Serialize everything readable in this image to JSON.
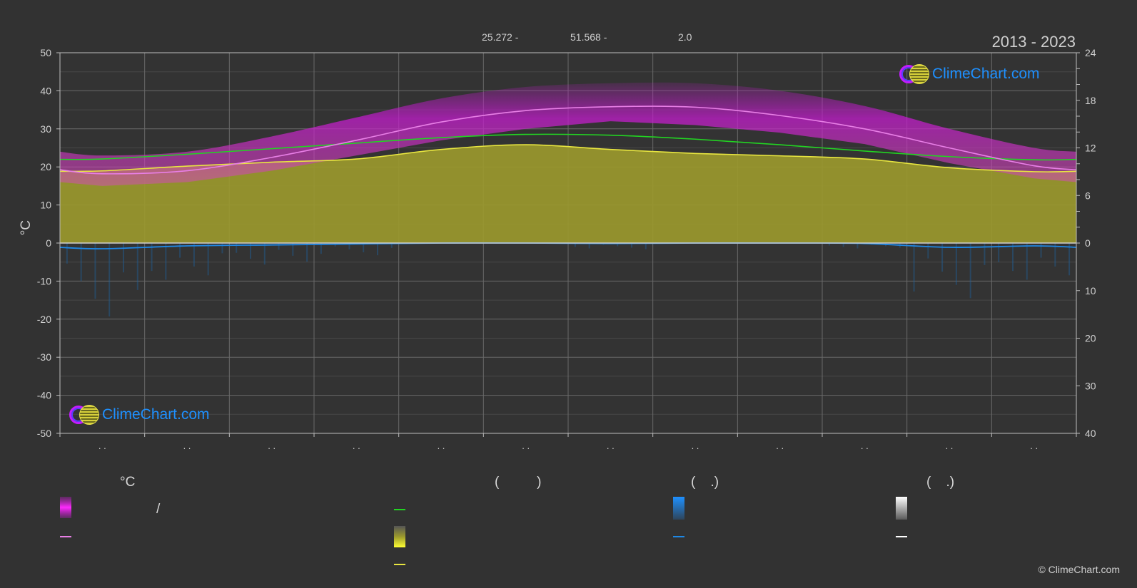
{
  "header": {
    "coord_lat": "25.272 -",
    "coord_lon": "51.568 -",
    "elevation": "2.0",
    "years": "2013 - 2023"
  },
  "brand": {
    "name": "ClimeChart.com",
    "copyright": "© ClimeChart.com"
  },
  "axes": {
    "left_label": "°C",
    "left_ticks": [
      50,
      40,
      30,
      20,
      10,
      0,
      -10,
      -20,
      -30,
      -40,
      -50
    ],
    "right_ticks_top": [
      24,
      18,
      12,
      6,
      0
    ],
    "right_ticks_bottom": [
      10,
      20,
      30,
      40
    ],
    "month_tick_label": ". ."
  },
  "legend": {
    "col1_header": "°C",
    "slash": "/",
    "col2_header": "(          )",
    "col3_header": "(    .)",
    "col4_header": "(    .)"
  },
  "colors": {
    "background": "#323232",
    "temp_range": "#c21ccc",
    "max_temp_line": "#e87fe6",
    "daylight_line": "#22d422",
    "sunshine_fill": "#9c9a2c",
    "sunshine_line": "#e8e640",
    "precip_line": "#1e88e5",
    "precip_bar": "#1e5f9a",
    "snow": "#ffffff",
    "brand_blue": "#1e90ff"
  },
  "chart_data": {
    "type": "area",
    "x_label": "",
    "months": 12,
    "ylim_left": [
      -50,
      50
    ],
    "ylim_right_hours": [
      0,
      24
    ],
    "ylim_right_precip": [
      0,
      40
    ],
    "series": [
      {
        "key": "max_temp_smooth",
        "values": [
          18.2,
          19.0,
          22.5,
          27.0,
          31.8,
          34.8,
          35.8,
          35.7,
          33.5,
          30.0,
          25.0,
          20.3
        ]
      },
      {
        "key": "temp_band_upper",
        "values": [
          23,
          24,
          28,
          33,
          38,
          41,
          42,
          42,
          40,
          36,
          30,
          25
        ]
      },
      {
        "key": "temp_band_lower",
        "values": [
          15,
          16,
          19,
          23,
          27,
          30,
          32,
          31,
          29,
          26,
          21,
          17
        ]
      },
      {
        "key": "daylight_hours",
        "values": [
          10.6,
          11.2,
          11.9,
          12.6,
          13.3,
          13.7,
          13.6,
          13.1,
          12.4,
          11.6,
          10.9,
          10.5
        ]
      },
      {
        "key": "sunshine_hours",
        "values": [
          9.1,
          9.7,
          10.2,
          10.6,
          11.8,
          12.4,
          11.8,
          11.3,
          11.0,
          10.6,
          9.5,
          9.0
        ]
      },
      {
        "key": "precip_mm",
        "values": [
          1.2,
          0.6,
          0.4,
          0.2,
          0.0,
          0.0,
          0.1,
          0.0,
          0.0,
          0.1,
          0.9,
          0.6
        ]
      }
    ]
  }
}
